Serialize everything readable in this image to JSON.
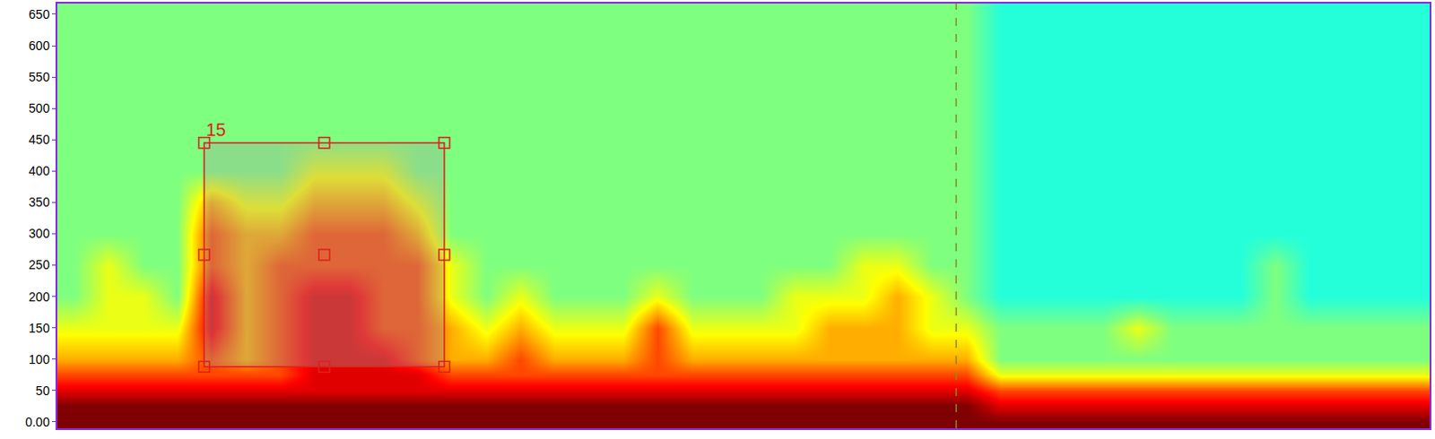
{
  "chart_data": {
    "type": "heatmap",
    "x": [
      1.25,
      3.75,
      6.25,
      8.75,
      11.25,
      13.75,
      16.25,
      18.75,
      21.25,
      23.75,
      26.25,
      28.75,
      31.25,
      33.75,
      36.25,
      38.75,
      41.25,
      43.75,
      46.25,
      48.75,
      51.25,
      53.75,
      56.25,
      58.75,
      61.25,
      63.75,
      66.25,
      68.75,
      71.25,
      73.75,
      76.25,
      78.75,
      81.25,
      83.75,
      86.25,
      88.75,
      91.25,
      93.75,
      96.25,
      98.75
    ],
    "y": [
      0,
      25,
      50,
      75,
      100,
      150,
      200,
      250,
      300,
      350,
      400,
      450,
      500,
      550,
      600,
      650
    ],
    "cells": [
      [
        10,
        10,
        9,
        8,
        7,
        6,
        5,
        5,
        5,
        5,
        5,
        5,
        5,
        5,
        5,
        5
      ],
      [
        10,
        10,
        9,
        8,
        7,
        6,
        6,
        6,
        5,
        5,
        5,
        5,
        5,
        5,
        5,
        5
      ],
      [
        10,
        10,
        9,
        8,
        7,
        6,
        6,
        5,
        5,
        5,
        5,
        5,
        5,
        5,
        5,
        5
      ],
      [
        10,
        10,
        9,
        8,
        7,
        6,
        5,
        5,
        5,
        5,
        5,
        5,
        5,
        5,
        5,
        5
      ],
      [
        10,
        10,
        9,
        8,
        8,
        9,
        9,
        8,
        8,
        7,
        5,
        5,
        5,
        5,
        5,
        5
      ],
      [
        10,
        10,
        9,
        8,
        7,
        7,
        7,
        7,
        7,
        6,
        5,
        5,
        5,
        5,
        5,
        5
      ],
      [
        10,
        10,
        9,
        8,
        8,
        8,
        8,
        8,
        7,
        6,
        5,
        5,
        5,
        5,
        5,
        5
      ],
      [
        10,
        10,
        9,
        9,
        9,
        9,
        9,
        8,
        8,
        7,
        6,
        5,
        5,
        5,
        5,
        5
      ],
      [
        10,
        10,
        9,
        9,
        9,
        9,
        9,
        8,
        8,
        7,
        6,
        5,
        5,
        5,
        5,
        5
      ],
      [
        10,
        10,
        9,
        9,
        9,
        8,
        8,
        8,
        8,
        7,
        6,
        5,
        5,
        5,
        5,
        5
      ],
      [
        10,
        10,
        9,
        9,
        8,
        8,
        8,
        8,
        7,
        6,
        5,
        5,
        5,
        5,
        5,
        5
      ],
      [
        10,
        10,
        9,
        8,
        7,
        7,
        6,
        6,
        5,
        5,
        5,
        5,
        5,
        5,
        5,
        5
      ],
      [
        10,
        10,
        9,
        8,
        7,
        6,
        5,
        5,
        5,
        5,
        5,
        5,
        5,
        5,
        5,
        5
      ],
      [
        10,
        10,
        9,
        8,
        8,
        7,
        6,
        5,
        5,
        5,
        5,
        5,
        5,
        5,
        5,
        5
      ],
      [
        10,
        10,
        9,
        8,
        7,
        6,
        5,
        5,
        5,
        5,
        5,
        5,
        5,
        5,
        5,
        5
      ],
      [
        10,
        10,
        9,
        8,
        7,
        6,
        5,
        5,
        5,
        5,
        5,
        5,
        5,
        5,
        5,
        5
      ],
      [
        10,
        10,
        9,
        8,
        7,
        6,
        5,
        5,
        5,
        5,
        5,
        5,
        5,
        5,
        5,
        5
      ],
      [
        10,
        10,
        9,
        8,
        8,
        8,
        6,
        5,
        5,
        5,
        5,
        5,
        5,
        5,
        5,
        5
      ],
      [
        10,
        10,
        9,
        8,
        7,
        6,
        5,
        5,
        5,
        5,
        5,
        5,
        5,
        5,
        5,
        5
      ],
      [
        10,
        10,
        9,
        8,
        7,
        6,
        5,
        5,
        5,
        5,
        5,
        5,
        5,
        5,
        5,
        5
      ],
      [
        10,
        10,
        9,
        8,
        7,
        6,
        5,
        5,
        5,
        5,
        5,
        5,
        5,
        5,
        5,
        5
      ],
      [
        10,
        10,
        9,
        8,
        7,
        6,
        6,
        5,
        5,
        5,
        5,
        5,
        5,
        5,
        5,
        5
      ],
      [
        10,
        10,
        9,
        8,
        7,
        7,
        6,
        5,
        5,
        5,
        5,
        5,
        5,
        5,
        5,
        5
      ],
      [
        10,
        10,
        9,
        8,
        7,
        7,
        6,
        6,
        5,
        5,
        5,
        5,
        5,
        5,
        5,
        5
      ],
      [
        10,
        10,
        9,
        8,
        7,
        7,
        7,
        6,
        5,
        5,
        5,
        5,
        5,
        5,
        5,
        5
      ],
      [
        10,
        10,
        9,
        8,
        7,
        6,
        6,
        5,
        5,
        5,
        5,
        5,
        5,
        5,
        5,
        5
      ],
      [
        10,
        10,
        9,
        8,
        7,
        6,
        5,
        5,
        5,
        5,
        5,
        5,
        5,
        5,
        5,
        5
      ],
      [
        10,
        9,
        8,
        6,
        5,
        5,
        4,
        4,
        4,
        4,
        4,
        4,
        4,
        4,
        4,
        4
      ],
      [
        10,
        9,
        8,
        6,
        5,
        5,
        4,
        4,
        4,
        4,
        4,
        4,
        4,
        4,
        4,
        4
      ],
      [
        10,
        9,
        8,
        6,
        5,
        5,
        4,
        4,
        4,
        4,
        4,
        4,
        4,
        4,
        4,
        4
      ],
      [
        10,
        9,
        8,
        6,
        5,
        5,
        4,
        4,
        4,
        4,
        4,
        4,
        4,
        4,
        4,
        4
      ],
      [
        10,
        9,
        8,
        6,
        5,
        6,
        4,
        4,
        4,
        4,
        4,
        4,
        4,
        4,
        4,
        4
      ],
      [
        10,
        9,
        8,
        6,
        5,
        5,
        4,
        4,
        4,
        4,
        4,
        4,
        4,
        4,
        4,
        4
      ],
      [
        10,
        9,
        8,
        6,
        5,
        5,
        4,
        4,
        4,
        4,
        4,
        4,
        4,
        4,
        4,
        4
      ],
      [
        10,
        9,
        8,
        6,
        5,
        5,
        4,
        4,
        4,
        4,
        4,
        4,
        4,
        4,
        4,
        4
      ],
      [
        10,
        9,
        8,
        6,
        5,
        5,
        5,
        5,
        4,
        4,
        4,
        4,
        4,
        4,
        4,
        4
      ],
      [
        10,
        9,
        8,
        6,
        5,
        5,
        4,
        4,
        4,
        4,
        4,
        4,
        4,
        4,
        4,
        4
      ],
      [
        10,
        9,
        8,
        6,
        5,
        5,
        4,
        4,
        4,
        4,
        4,
        4,
        4,
        4,
        4,
        4
      ],
      [
        10,
        9,
        8,
        6,
        5,
        5,
        4,
        4,
        4,
        4,
        4,
        4,
        4,
        4,
        4,
        4
      ],
      [
        10,
        9,
        8,
        6,
        5,
        5,
        4,
        4,
        4,
        4,
        4,
        4,
        4,
        4,
        4,
        4
      ]
    ],
    "zlim": [
      0,
      10
    ],
    "xlim": [
      0,
      100
    ],
    "ylim": [
      -10,
      667
    ],
    "yticks": [
      {
        "value": 0,
        "label": "0.00"
      },
      50,
      100,
      150,
      200,
      250,
      300,
      350,
      400,
      450,
      500,
      550,
      600,
      650
    ],
    "tick_labels": "y",
    "grid": false,
    "box": {
      "label": "15",
      "x0": 10.7,
      "x1": 28.2,
      "y0": 88,
      "y1": 445,
      "color": "#e0201c"
    },
    "vline": {
      "x": 65.5,
      "line_style": "dashed",
      "color": "#8a8a20"
    }
  }
}
